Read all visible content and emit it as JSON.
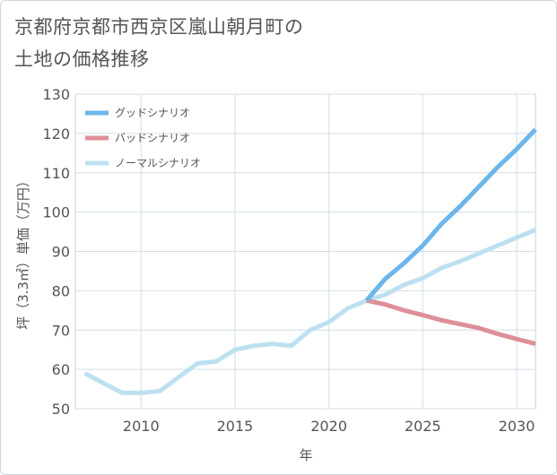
{
  "title": {
    "line1": "京都府京都市西京区嵐山朝月町の",
    "line2": "土地の価格推移"
  },
  "chart_data": {
    "type": "line",
    "xlabel": "年",
    "ylabel": "坪（3.3㎡）単価（万円）",
    "xlim": [
      2006.5,
      2031
    ],
    "ylim": [
      50,
      130
    ],
    "xticks": [
      2010,
      2015,
      2020,
      2025,
      2030
    ],
    "yticks": [
      50,
      60,
      70,
      80,
      90,
      100,
      110,
      120,
      130
    ],
    "legend_position": "top-left",
    "series": [
      {
        "name": "グッドシナリオ",
        "color": "#6cb6ea",
        "x": [
          2022,
          2023,
          2024,
          2025,
          2026,
          2027,
          2028,
          2029,
          2030,
          2031
        ],
        "y": [
          77.5,
          83,
          87,
          91.5,
          97,
          101.5,
          106.5,
          111.5,
          116,
          121
        ]
      },
      {
        "name": "バッドシナリオ",
        "color": "#df8f99",
        "x": [
          2022,
          2023,
          2024,
          2025,
          2026,
          2027,
          2028,
          2029,
          2030,
          2031
        ],
        "y": [
          77.5,
          76.5,
          75,
          73.8,
          72.5,
          71.5,
          70.5,
          69,
          67.7,
          66.5
        ]
      },
      {
        "name": "ノーマルシナリオ",
        "color": "#bde0f1",
        "x": [
          2007,
          2008,
          2009,
          2010,
          2011,
          2012,
          2013,
          2014,
          2015,
          2016,
          2017,
          2018,
          2019,
          2020,
          2021,
          2022,
          2023,
          2024,
          2025,
          2026,
          2027,
          2028,
          2029,
          2030,
          2031
        ],
        "y": [
          59,
          56.5,
          54,
          54,
          54.5,
          58,
          61.5,
          62,
          65,
          66,
          66.5,
          66,
          70,
          72,
          75.5,
          77.5,
          79,
          81.5,
          83.2,
          85.8,
          87.5,
          89.5,
          91.5,
          93.5,
          95.5
        ]
      }
    ]
  }
}
